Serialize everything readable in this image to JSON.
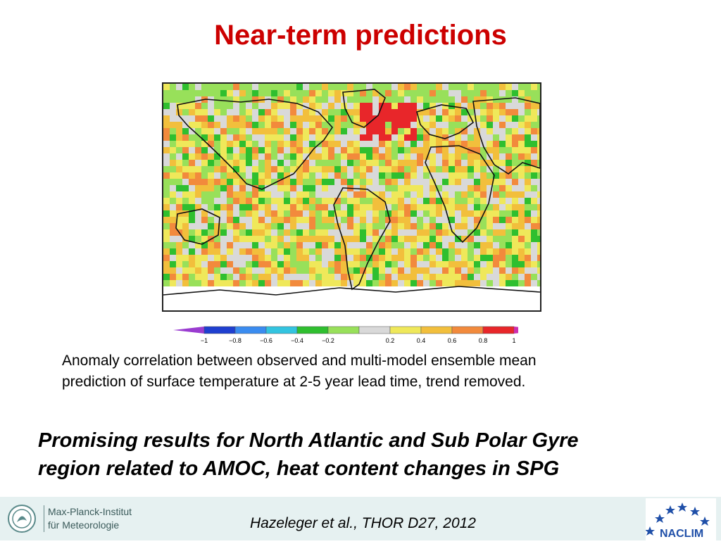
{
  "slide": {
    "title": "Near-term predictions",
    "caption_line1": "Anomaly correlation between observed and multi-model ensemble mean",
    "caption_line2": "prediction of surface temperature at 2-5 year lead time, trend removed.",
    "takeaway_line1": "Promising results for North Atlantic and Sub Polar Gyre",
    "takeaway_line2": "region related to AMOC, heat content changes in SPG"
  },
  "colorbar": {
    "ticks": [
      "−1",
      "−0.8",
      "−0.6",
      "−0.4",
      "−0.2",
      "0.2",
      "0.4",
      "0.6",
      "0.8",
      "1"
    ],
    "bins": [
      "#1f3fd0",
      "#3a8cf0",
      "#33c4e0",
      "#2fbf2f",
      "#98e05a",
      "#d9d9d9",
      "#efe85a",
      "#f2bf3c",
      "#f28a3c",
      "#e8262a"
    ],
    "under_color": "#9a3cd0",
    "over_color": "#cc2fb0"
  },
  "footer": {
    "institute_line1": "Max-Planck-Institut",
    "institute_line2": "für Meteorologie",
    "citation": "Hazeleger et al., THOR D27, 2012",
    "partner_logo_text": "NACLIM"
  }
}
